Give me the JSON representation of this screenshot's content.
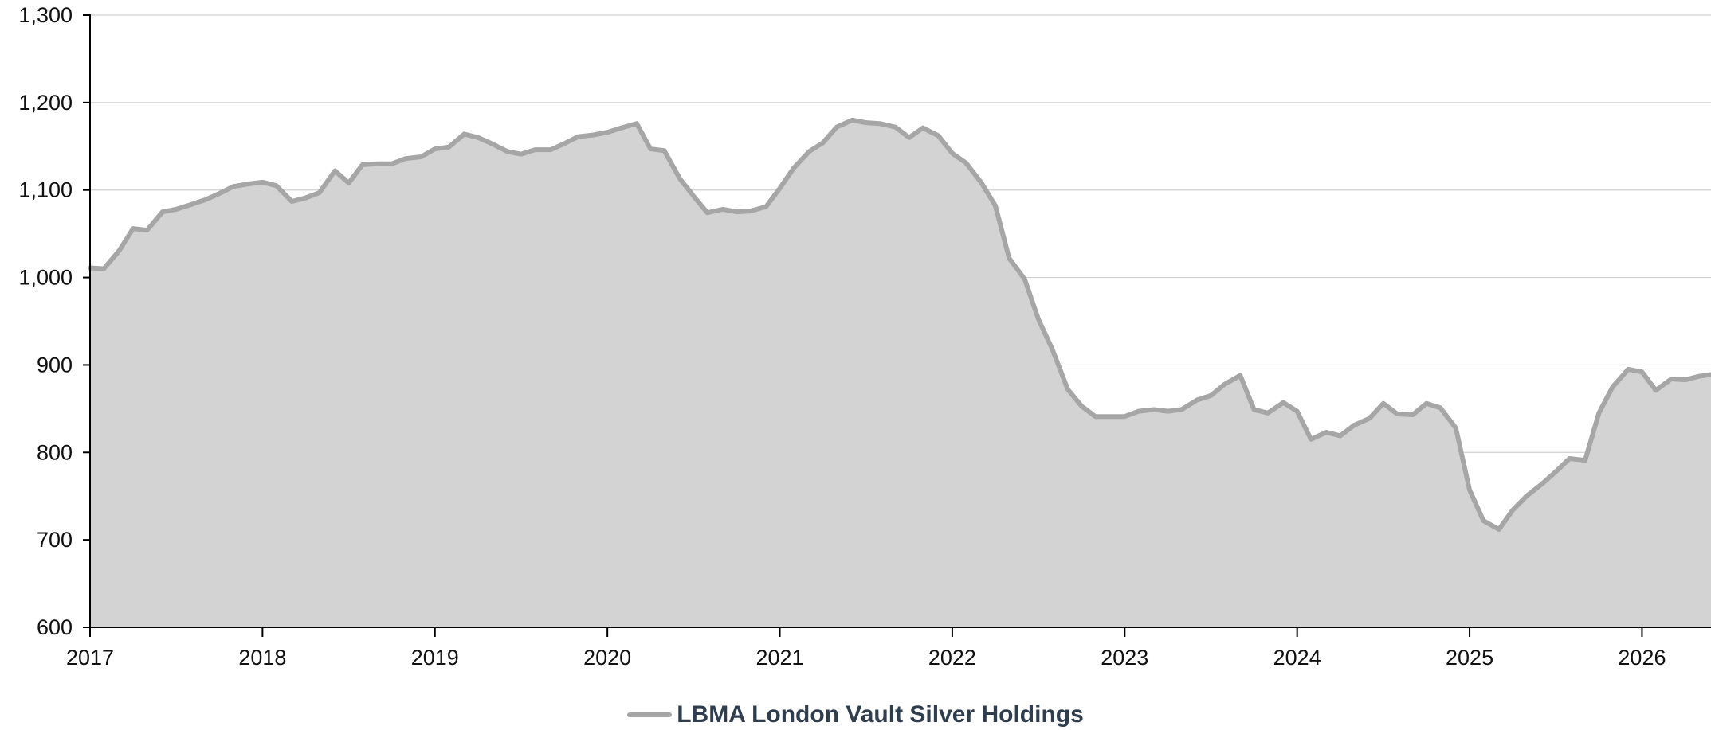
{
  "chart_data": {
    "type": "area",
    "title": "",
    "xlabel": "",
    "ylabel": "",
    "xlim": [
      2017,
      2026.4
    ],
    "ylim": [
      600,
      1300
    ],
    "y_ticks": [
      600,
      700,
      800,
      900,
      1000,
      1100,
      1200,
      1300
    ],
    "y_tick_labels": [
      "600",
      "700",
      "800",
      "900",
      "1,000",
      "1,100",
      "1,200",
      "1,300"
    ],
    "x_ticks": [
      2017,
      2018,
      2019,
      2020,
      2021,
      2022,
      2023,
      2024,
      2025,
      2026
    ],
    "x_tick_labels": [
      "2017",
      "2018",
      "2019",
      "2020",
      "2021",
      "2022",
      "2023",
      "2024",
      "2025",
      "2026"
    ],
    "grid": "horizontal",
    "legend_position": "bottom-center",
    "series": [
      {
        "name": "LBMA London Vault Silver Holdings",
        "line_color": "#a6a6a6",
        "fill_color": "#d3d3d3",
        "points": [
          [
            2017.0,
            1011
          ],
          [
            2017.08,
            1010
          ],
          [
            2017.17,
            1031
          ],
          [
            2017.25,
            1056
          ],
          [
            2017.33,
            1054
          ],
          [
            2017.42,
            1075
          ],
          [
            2017.5,
            1078
          ],
          [
            2017.58,
            1083
          ],
          [
            2017.67,
            1089
          ],
          [
            2017.75,
            1096
          ],
          [
            2017.83,
            1104
          ],
          [
            2017.92,
            1107
          ],
          [
            2018.0,
            1109
          ],
          [
            2018.08,
            1105
          ],
          [
            2018.17,
            1087
          ],
          [
            2018.25,
            1091
          ],
          [
            2018.33,
            1097
          ],
          [
            2018.42,
            1122
          ],
          [
            2018.5,
            1108
          ],
          [
            2018.58,
            1129
          ],
          [
            2018.67,
            1130
          ],
          [
            2018.75,
            1130
          ],
          [
            2018.83,
            1136
          ],
          [
            2018.92,
            1138
          ],
          [
            2019.0,
            1147
          ],
          [
            2019.08,
            1149
          ],
          [
            2019.17,
            1164
          ],
          [
            2019.25,
            1160
          ],
          [
            2019.33,
            1153
          ],
          [
            2019.42,
            1144
          ],
          [
            2019.5,
            1141
          ],
          [
            2019.58,
            1146
          ],
          [
            2019.67,
            1146
          ],
          [
            2019.75,
            1153
          ],
          [
            2019.83,
            1161
          ],
          [
            2019.92,
            1163
          ],
          [
            2020.0,
            1166
          ],
          [
            2020.08,
            1171
          ],
          [
            2020.17,
            1176
          ],
          [
            2020.25,
            1147
          ],
          [
            2020.33,
            1145
          ],
          [
            2020.42,
            1113
          ],
          [
            2020.5,
            1093
          ],
          [
            2020.58,
            1074
          ],
          [
            2020.67,
            1078
          ],
          [
            2020.75,
            1075
          ],
          [
            2020.83,
            1076
          ],
          [
            2020.92,
            1081
          ],
          [
            2021.0,
            1102
          ],
          [
            2021.08,
            1125
          ],
          [
            2021.17,
            1144
          ],
          [
            2021.25,
            1154
          ],
          [
            2021.33,
            1172
          ],
          [
            2021.42,
            1180
          ],
          [
            2021.5,
            1177
          ],
          [
            2021.58,
            1176
          ],
          [
            2021.67,
            1172
          ],
          [
            2021.75,
            1160
          ],
          [
            2021.83,
            1171
          ],
          [
            2021.92,
            1162
          ],
          [
            2022.0,
            1142
          ],
          [
            2022.08,
            1131
          ],
          [
            2022.17,
            1108
          ],
          [
            2022.25,
            1082
          ],
          [
            2022.33,
            1022
          ],
          [
            2022.42,
            998
          ],
          [
            2022.5,
            952
          ],
          [
            2022.58,
            918
          ],
          [
            2022.67,
            872
          ],
          [
            2022.75,
            853
          ],
          [
            2022.83,
            841
          ],
          [
            2022.92,
            841
          ],
          [
            2023.0,
            841
          ],
          [
            2023.08,
            847
          ],
          [
            2023.17,
            849
          ],
          [
            2023.25,
            847
          ],
          [
            2023.33,
            849
          ],
          [
            2023.42,
            860
          ],
          [
            2023.5,
            865
          ],
          [
            2023.58,
            878
          ],
          [
            2023.67,
            888
          ],
          [
            2023.75,
            849
          ],
          [
            2023.83,
            845
          ],
          [
            2023.92,
            857
          ],
          [
            2024.0,
            847
          ],
          [
            2024.08,
            815
          ],
          [
            2024.17,
            823
          ],
          [
            2024.25,
            819
          ],
          [
            2024.33,
            831
          ],
          [
            2024.42,
            839
          ],
          [
            2024.5,
            856
          ],
          [
            2024.58,
            844
          ],
          [
            2024.67,
            843
          ],
          [
            2024.75,
            856
          ],
          [
            2024.83,
            851
          ],
          [
            2024.92,
            828
          ],
          [
            2025.0,
            757
          ],
          [
            2025.08,
            722
          ],
          [
            2025.17,
            712
          ],
          [
            2025.25,
            734
          ],
          [
            2025.33,
            750
          ],
          [
            2025.42,
            764
          ],
          [
            2025.5,
            778
          ],
          [
            2025.58,
            793
          ],
          [
            2025.67,
            791
          ],
          [
            2025.75,
            845
          ],
          [
            2025.83,
            875
          ],
          [
            2025.92,
            895
          ],
          [
            2026.0,
            892
          ],
          [
            2026.08,
            871
          ],
          [
            2026.17,
            884
          ],
          [
            2026.25,
            883
          ],
          [
            2026.33,
            887
          ],
          [
            2026.4,
            889
          ]
        ]
      }
    ]
  }
}
